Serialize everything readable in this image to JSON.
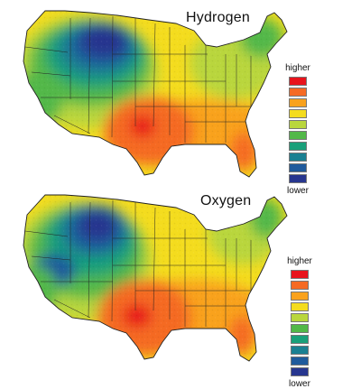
{
  "maps": [
    {
      "title": "Hydrogen",
      "legend": {
        "high_label": "higher",
        "low_label": "lower",
        "colors": [
          "#e8141c",
          "#f56a24",
          "#f9a21e",
          "#f4dc1e",
          "#b9d63c",
          "#52b848",
          "#19a07a",
          "#1a8092",
          "#1f5a9c",
          "#27368f"
        ]
      }
    },
    {
      "title": "Oxygen",
      "legend": {
        "high_label": "higher",
        "low_label": "lower",
        "colors": [
          "#e8141c",
          "#f56a24",
          "#f9a21e",
          "#f4dc1e",
          "#b9d63c",
          "#52b848",
          "#19a07a",
          "#1a8092",
          "#1f5a9c",
          "#27368f"
        ]
      }
    }
  ]
}
